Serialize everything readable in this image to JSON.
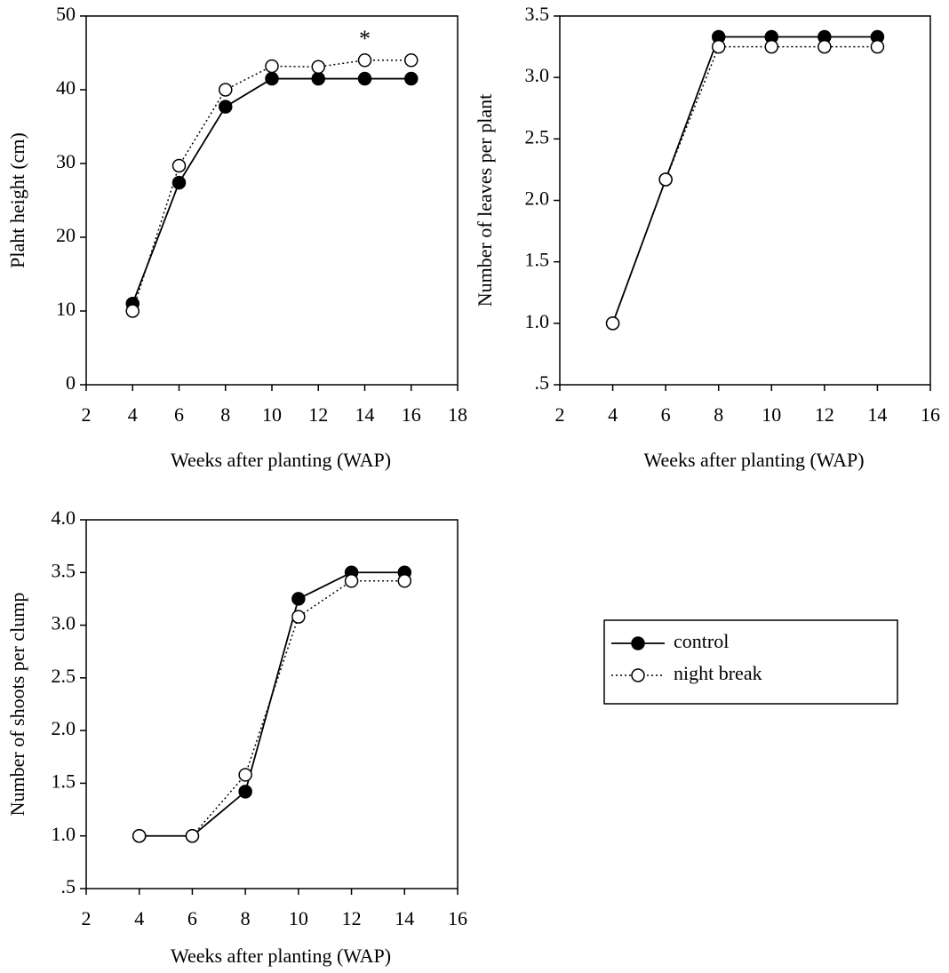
{
  "chart_data": [
    {
      "type": "line",
      "x_label": "Weeks after planting (WAP)",
      "y_label": "Plaht height (cm)",
      "x": [
        4,
        6,
        8,
        10,
        12,
        14,
        16
      ],
      "series": [
        {
          "color": "#000000",
          "marker": "filled",
          "linestyle": "solid",
          "values": [
            11,
            27.4,
            37.7,
            41.5,
            41.5,
            41.5,
            41.5
          ]
        },
        {
          "color": "#000000",
          "marker": "open",
          "linestyle": "dotted",
          "values": [
            10,
            29.7,
            40,
            43.2,
            43.1,
            44,
            44
          ]
        }
      ],
      "xlim": [
        2,
        18
      ],
      "xticks": [
        2,
        4,
        6,
        8,
        10,
        12,
        14,
        16,
        18
      ],
      "ylim": [
        0,
        50
      ],
      "yticks": [
        0,
        10,
        20,
        30,
        40,
        50
      ],
      "annotations": [
        {
          "text": "*",
          "x": 14
        }
      ]
    },
    {
      "type": "line",
      "x_label": "Weeks after planting (WAP)",
      "y_label": "Number of leaves per plant",
      "x": [
        4,
        6,
        8,
        10,
        12,
        14
      ],
      "series": [
        {
          "color": "#000000",
          "marker": "filled",
          "linestyle": "solid",
          "values": [
            1.0,
            2.17,
            3.33,
            3.33,
            3.33,
            3.33
          ]
        },
        {
          "color": "#000000",
          "marker": "open",
          "linestyle": "dotted",
          "values": [
            1.0,
            2.17,
            3.25,
            3.25,
            3.25,
            3.25
          ]
        }
      ],
      "xlim": [
        2,
        16
      ],
      "xticks": [
        2,
        4,
        6,
        8,
        10,
        12,
        14,
        16
      ],
      "ylim": [
        0.5,
        3.5
      ],
      "yticks": [
        {
          "value": 0.5,
          "label": ".5"
        },
        {
          "value": 1,
          "label": "1.0"
        },
        1.5,
        {
          "value": 2,
          "label": "2.0"
        },
        2.5,
        {
          "value": 3,
          "label": "3.0"
        },
        3.5
      ]
    },
    {
      "type": "line",
      "x_label": "Weeks after planting (WAP)",
      "y_label": "Number of shoots per clump",
      "x": [
        4,
        6,
        8,
        10,
        12,
        14
      ],
      "series": [
        {
          "name": "control",
          "color": "#000000",
          "marker": "filled",
          "linestyle": "solid",
          "values": [
            1,
            1,
            1.42,
            3.25,
            3.5,
            3.5
          ]
        },
        {
          "name": "night break",
          "color": "#000000",
          "marker": "open",
          "linestyle": "dotted",
          "values": [
            1,
            1,
            1.58,
            3.08,
            3.42,
            3.42
          ]
        }
      ],
      "xlim": [
        2,
        16
      ],
      "xticks": [
        2,
        4,
        6,
        8,
        10,
        12,
        14,
        16
      ],
      "ylim": [
        0.5,
        4
      ],
      "yticks": [
        {
          "value": 0.5,
          "label": ".5"
        },
        {
          "value": 1,
          "label": "1.0"
        },
        1.5,
        {
          "value": 2,
          "label": "2.0"
        },
        2.5,
        {
          "value": 3,
          "label": "3.0"
        },
        3.5,
        {
          "value": 4,
          "label": "4.0"
        }
      ]
    }
  ]
}
